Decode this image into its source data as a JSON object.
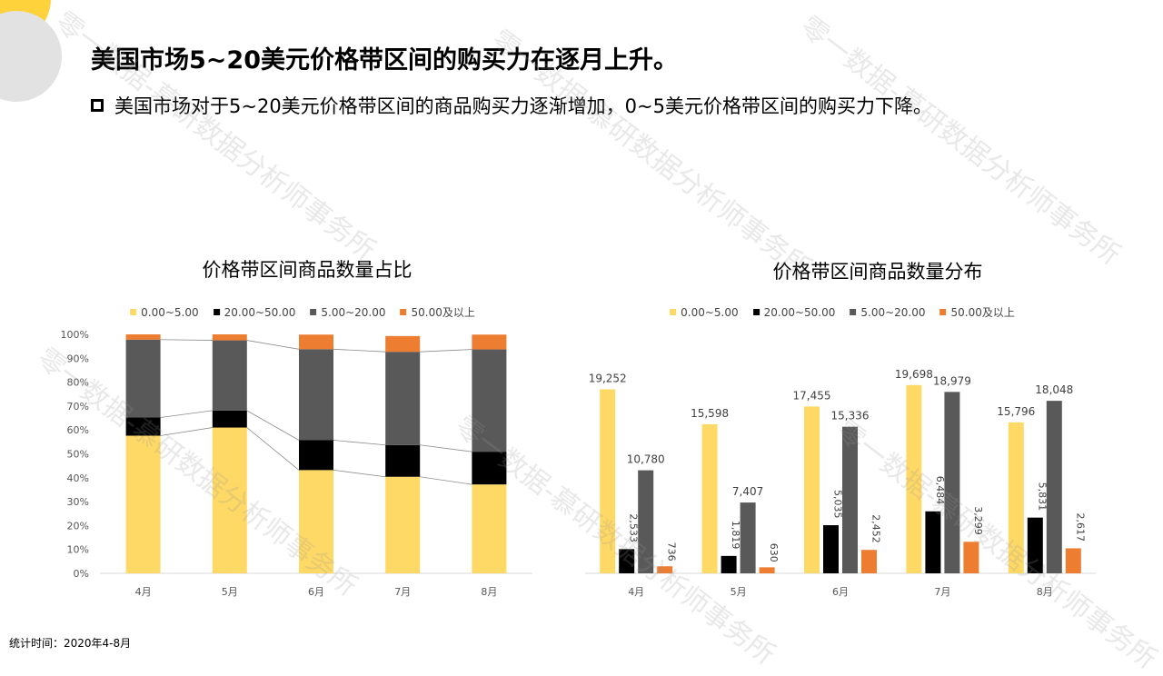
{
  "header": {
    "title": "美国市场5~20美元价格带区间的购买力在逐月上升。",
    "bullet": "美国市场对于5~20美元价格带区间的商品购买力逐渐增加，0~5美元价格带区间的购买力下降。"
  },
  "legend": [
    "0.00~5.00",
    "20.00~50.00",
    "5.00~20.00",
    "50.00及以上"
  ],
  "colors": {
    "yellow": "#FFD966",
    "black": "#000000",
    "gray": "#595959",
    "orange": "#ED7D31",
    "deco_yellow": "#FDD23B",
    "deco_gray": "#E2E2E2"
  },
  "footnote": "统计时间：2020年4-8月",
  "watermark": "零一数据-慕研数据分析师事务所",
  "chart_data": [
    {
      "type": "bar",
      "stacked": true,
      "percent": true,
      "title": "价格带区间商品数量占比",
      "categories": [
        "4月",
        "5月",
        "6月",
        "7月",
        "8月"
      ],
      "series": [
        {
          "name": "0.00~5.00",
          "values": [
            57.6,
            61.0,
            43.2,
            40.4,
            37.2
          ]
        },
        {
          "name": "20.00~50.00",
          "values": [
            7.6,
            7.1,
            12.5,
            13.3,
            13.7
          ]
        },
        {
          "name": "5.00~20.00",
          "values": [
            32.6,
            29.4,
            38.1,
            39.0,
            42.8
          ]
        },
        {
          "name": "50.00及以上",
          "values": [
            2.2,
            2.5,
            6.1,
            6.6,
            6.2
          ]
        }
      ],
      "yticks": [
        "0%",
        "10%",
        "20%",
        "30%",
        "40%",
        "50%",
        "60%",
        "70%",
        "80%",
        "90%",
        "100%"
      ],
      "ylim": [
        0,
        100
      ],
      "legend_position": "top",
      "series_lines": true
    },
    {
      "type": "bar",
      "title": "价格带区间商品数量分布",
      "categories": [
        "4月",
        "5月",
        "6月",
        "7月",
        "8月"
      ],
      "series": [
        {
          "name": "0.00~5.00",
          "values": [
            19252,
            15598,
            17455,
            19698,
            15796
          ]
        },
        {
          "name": "20.00~50.00",
          "values": [
            2533,
            1819,
            5035,
            6484,
            5831
          ]
        },
        {
          "name": "5.00~20.00",
          "values": [
            10780,
            7407,
            15336,
            18979,
            18048
          ]
        },
        {
          "name": "50.00及以上",
          "values": [
            736,
            630,
            2452,
            3299,
            2617
          ]
        }
      ],
      "labels": [
        [
          "19,252",
          "15,598",
          "17,455",
          "19,698",
          "15,796"
        ],
        [
          "2,533",
          "1,819",
          "5,035",
          "6,484",
          "5,831"
        ],
        [
          "10,780",
          "7,407",
          "15,336",
          "18,979",
          "18,048"
        ],
        [
          "736",
          "630",
          "2,452",
          "3,299",
          "2,617"
        ]
      ],
      "ylim": [
        0,
        25000
      ],
      "legend_position": "top"
    }
  ]
}
